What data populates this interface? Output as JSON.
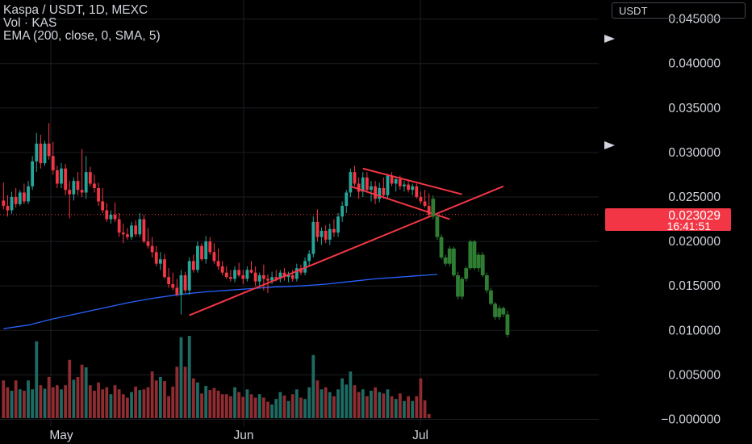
{
  "header": {
    "symbol_line": "Kaspa / USDT, 1D, MEXC",
    "volume_line": "Vol · KAS",
    "ema_line": "EMA (200, close, 0, SMA, 5)"
  },
  "currency_button": "USDT",
  "price_badge": {
    "price": "0.023029",
    "countdown": "16:41:51",
    "color": "#f23645"
  },
  "colors": {
    "up": "#26a69a",
    "down": "#f23645",
    "projection": "#2e7d32",
    "ema": "#2962ff",
    "trendline": "#f23645",
    "grid": "#1c1e24",
    "axis_text": "#d1d4dc"
  },
  "chart_data": {
    "type": "candlestick",
    "x_axis": {
      "tick_labels": [
        "May",
        "Jun",
        "Jul"
      ]
    },
    "y_axis": {
      "position": "right",
      "range": [
        -0.0008,
        0.047
      ],
      "tick_values": [
        0.045,
        0.04,
        0.035,
        0.03,
        0.025,
        0.02,
        0.015,
        0.01,
        0.005,
        0.0
      ],
      "tick_labels": [
        "0.045000",
        "0.040000",
        "0.035000",
        "0.030000",
        "0.025000",
        "0.020000",
        "0.015000",
        "0.010000",
        "0.005000",
        "−0.000000"
      ]
    },
    "grid": true,
    "current_price": 0.023029,
    "candles": [
      [
        0.0246,
        0.0266,
        0.0236,
        0.024
      ],
      [
        0.024,
        0.0252,
        0.0228,
        0.0235
      ],
      [
        0.0235,
        0.0256,
        0.0231,
        0.025
      ],
      [
        0.025,
        0.026,
        0.0238,
        0.0242
      ],
      [
        0.0242,
        0.0258,
        0.024,
        0.0255
      ],
      [
        0.0255,
        0.0265,
        0.0242,
        0.0245
      ],
      [
        0.0245,
        0.0268,
        0.0242,
        0.0262
      ],
      [
        0.0262,
        0.0296,
        0.0258,
        0.029
      ],
      [
        0.029,
        0.0322,
        0.0278,
        0.031
      ],
      [
        0.031,
        0.032,
        0.0282,
        0.0288
      ],
      [
        0.0288,
        0.0313,
        0.0285,
        0.031
      ],
      [
        0.031,
        0.0333,
        0.0292,
        0.0296
      ],
      [
        0.0296,
        0.0312,
        0.0275,
        0.028
      ],
      [
        0.028,
        0.0285,
        0.026,
        0.0265
      ],
      [
        0.0265,
        0.0288,
        0.026,
        0.0282
      ],
      [
        0.0282,
        0.0287,
        0.0252,
        0.0258
      ],
      [
        0.0258,
        0.0268,
        0.0226,
        0.0253
      ],
      [
        0.0253,
        0.0272,
        0.0246,
        0.0268
      ],
      [
        0.0268,
        0.0278,
        0.0252,
        0.0258
      ],
      [
        0.0258,
        0.0304,
        0.025,
        0.0255
      ],
      [
        0.0255,
        0.0296,
        0.0248,
        0.0278
      ],
      [
        0.0278,
        0.0284,
        0.0262,
        0.0265
      ],
      [
        0.0265,
        0.0275,
        0.0255,
        0.026
      ],
      [
        0.026,
        0.0266,
        0.024,
        0.0245
      ],
      [
        0.0245,
        0.026,
        0.0232,
        0.0235
      ],
      [
        0.0235,
        0.0243,
        0.0222,
        0.0225
      ],
      [
        0.0225,
        0.0235,
        0.022,
        0.023
      ],
      [
        0.023,
        0.0244,
        0.0222,
        0.0225
      ],
      [
        0.0225,
        0.0232,
        0.0205,
        0.021
      ],
      [
        0.021,
        0.022,
        0.0198,
        0.0208
      ],
      [
        0.0208,
        0.0215,
        0.0202,
        0.0205
      ],
      [
        0.0205,
        0.0222,
        0.0202,
        0.0218
      ],
      [
        0.0218,
        0.0224,
        0.0205,
        0.0208
      ],
      [
        0.0208,
        0.0232,
        0.0205,
        0.0225
      ],
      [
        0.0225,
        0.023,
        0.0198,
        0.02
      ],
      [
        0.02,
        0.0215,
        0.0192,
        0.0195
      ],
      [
        0.0195,
        0.0205,
        0.0182,
        0.0188
      ],
      [
        0.0188,
        0.0195,
        0.0172,
        0.0175
      ],
      [
        0.0175,
        0.0188,
        0.0168,
        0.018
      ],
      [
        0.018,
        0.0186,
        0.0158,
        0.016
      ],
      [
        0.016,
        0.017,
        0.0148,
        0.0152
      ],
      [
        0.0152,
        0.0165,
        0.0145,
        0.0148
      ],
      [
        0.0148,
        0.0158,
        0.0138,
        0.014
      ],
      [
        0.014,
        0.0168,
        0.0118,
        0.0162
      ],
      [
        0.0162,
        0.0166,
        0.0142,
        0.0145
      ],
      [
        0.0145,
        0.0182,
        0.014,
        0.0178
      ],
      [
        0.0178,
        0.0185,
        0.0165,
        0.0168
      ],
      [
        0.0168,
        0.02,
        0.0165,
        0.0195
      ],
      [
        0.0195,
        0.0198,
        0.0178,
        0.018
      ],
      [
        0.018,
        0.0206,
        0.0175,
        0.02
      ],
      [
        0.02,
        0.0205,
        0.0185,
        0.0188
      ],
      [
        0.0188,
        0.0198,
        0.0175,
        0.0178
      ],
      [
        0.0178,
        0.0192,
        0.0168,
        0.0172
      ],
      [
        0.0172,
        0.0178,
        0.0162,
        0.0165
      ],
      [
        0.0165,
        0.0172,
        0.0158,
        0.016
      ],
      [
        0.016,
        0.0168,
        0.0155,
        0.0158
      ],
      [
        0.0158,
        0.0172,
        0.0154,
        0.0168
      ],
      [
        0.0168,
        0.0176,
        0.016,
        0.0162
      ],
      [
        0.0162,
        0.0168,
        0.0152,
        0.0158
      ],
      [
        0.0158,
        0.0172,
        0.0155,
        0.0168
      ],
      [
        0.0168,
        0.0178,
        0.0164,
        0.0165
      ],
      [
        0.0165,
        0.0172,
        0.015,
        0.0155
      ],
      [
        0.0155,
        0.0165,
        0.015,
        0.0162
      ],
      [
        0.0162,
        0.0174,
        0.0145,
        0.0158
      ],
      [
        0.0158,
        0.0163,
        0.0142,
        0.0156
      ],
      [
        0.0156,
        0.0166,
        0.0152,
        0.016
      ],
      [
        0.016,
        0.0168,
        0.0155,
        0.0158
      ],
      [
        0.0158,
        0.0168,
        0.0154,
        0.0165
      ],
      [
        0.0165,
        0.017,
        0.0156,
        0.016
      ],
      [
        0.016,
        0.0166,
        0.0154,
        0.0162
      ],
      [
        0.0162,
        0.0168,
        0.0155,
        0.0158
      ],
      [
        0.0158,
        0.0175,
        0.0155,
        0.017
      ],
      [
        0.017,
        0.0174,
        0.0162,
        0.0165
      ],
      [
        0.0165,
        0.0182,
        0.0162,
        0.0178
      ],
      [
        0.0178,
        0.019,
        0.0172,
        0.0186
      ],
      [
        0.0186,
        0.0228,
        0.0182,
        0.0222
      ],
      [
        0.0222,
        0.0236,
        0.02,
        0.0205
      ],
      [
        0.0205,
        0.0216,
        0.0196,
        0.0212
      ],
      [
        0.0212,
        0.0218,
        0.0198,
        0.0202
      ],
      [
        0.0202,
        0.022,
        0.0196,
        0.0214
      ],
      [
        0.0214,
        0.0225,
        0.0205,
        0.021
      ],
      [
        0.021,
        0.0232,
        0.0205,
        0.0228
      ],
      [
        0.0228,
        0.0245,
        0.0222,
        0.024
      ],
      [
        0.024,
        0.0258,
        0.0232,
        0.0255
      ],
      [
        0.0255,
        0.0282,
        0.025,
        0.0278
      ],
      [
        0.0278,
        0.0285,
        0.0262,
        0.0265
      ],
      [
        0.0265,
        0.0272,
        0.0248,
        0.0256
      ],
      [
        0.0256,
        0.0278,
        0.025,
        0.0272
      ],
      [
        0.0272,
        0.0278,
        0.0255,
        0.0258
      ],
      [
        0.0258,
        0.0268,
        0.0245,
        0.0262
      ],
      [
        0.0262,
        0.0268,
        0.0242,
        0.0248
      ],
      [
        0.0248,
        0.0266,
        0.0244,
        0.026
      ],
      [
        0.026,
        0.0272,
        0.0248,
        0.0252
      ],
      [
        0.0252,
        0.0276,
        0.0248,
        0.0274
      ],
      [
        0.0274,
        0.0278,
        0.0262,
        0.0265
      ],
      [
        0.0265,
        0.0272,
        0.0256,
        0.027
      ],
      [
        0.027,
        0.0274,
        0.0258,
        0.0262
      ],
      [
        0.0262,
        0.0268,
        0.0256,
        0.0264
      ],
      [
        0.0264,
        0.0268,
        0.0255,
        0.0258
      ],
      [
        0.0258,
        0.0265,
        0.0252,
        0.0262
      ],
      [
        0.0262,
        0.0265,
        0.0248,
        0.025
      ],
      [
        0.025,
        0.0256,
        0.0242,
        0.0245
      ],
      [
        0.0245,
        0.0258,
        0.0238,
        0.024
      ],
      [
        0.024,
        0.0254,
        0.0228,
        0.023
      ]
    ],
    "volumes": [
      [
        0.0055,
        false
      ],
      [
        0.0045,
        false
      ],
      [
        0.004,
        true
      ],
      [
        0.0055,
        false
      ],
      [
        0.0042,
        true
      ],
      [
        0.004,
        false
      ],
      [
        0.0055,
        true
      ],
      [
        0.0042,
        true
      ],
      [
        0.0112,
        true
      ],
      [
        0.0048,
        false
      ],
      [
        0.0043,
        true
      ],
      [
        0.006,
        false
      ],
      [
        0.0045,
        false
      ],
      [
        0.0048,
        false
      ],
      [
        0.0042,
        true
      ],
      [
        0.0048,
        false
      ],
      [
        0.0085,
        false
      ],
      [
        0.0056,
        true
      ],
      [
        0.006,
        false
      ],
      [
        0.0078,
        false
      ],
      [
        0.0074,
        true
      ],
      [
        0.0048,
        false
      ],
      [
        0.004,
        false
      ],
      [
        0.0052,
        false
      ],
      [
        0.0042,
        false
      ],
      [
        0.0045,
        false
      ],
      [
        0.0035,
        true
      ],
      [
        0.0048,
        false
      ],
      [
        0.0042,
        false
      ],
      [
        0.0035,
        false
      ],
      [
        0.003,
        false
      ],
      [
        0.0038,
        true
      ],
      [
        0.0046,
        false
      ],
      [
        0.0041,
        true
      ],
      [
        0.0042,
        false
      ],
      [
        0.0045,
        false
      ],
      [
        0.0068,
        false
      ],
      [
        0.0055,
        false
      ],
      [
        0.006,
        true
      ],
      [
        0.0054,
        false
      ],
      [
        0.0032,
        false
      ],
      [
        0.0046,
        false
      ],
      [
        0.0075,
        false
      ],
      [
        0.0118,
        true
      ],
      [
        0.0075,
        false
      ],
      [
        0.012,
        true
      ],
      [
        0.0058,
        false
      ],
      [
        0.0052,
        true
      ],
      [
        0.0036,
        false
      ],
      [
        0.0047,
        true
      ],
      [
        0.0041,
        false
      ],
      [
        0.0044,
        false
      ],
      [
        0.004,
        false
      ],
      [
        0.0035,
        false
      ],
      [
        0.0035,
        false
      ],
      [
        0.0032,
        false
      ],
      [
        0.0045,
        true
      ],
      [
        0.0038,
        false
      ],
      [
        0.0031,
        false
      ],
      [
        0.0042,
        true
      ],
      [
        0.0035,
        false
      ],
      [
        0.003,
        false
      ],
      [
        0.0035,
        true
      ],
      [
        0.003,
        false
      ],
      [
        0.0024,
        false
      ],
      [
        0.002,
        true
      ],
      [
        0.0028,
        true
      ],
      [
        0.0038,
        true
      ],
      [
        0.0033,
        false
      ],
      [
        0.0025,
        true
      ],
      [
        0.0035,
        false
      ],
      [
        0.0042,
        true
      ],
      [
        0.003,
        false
      ],
      [
        0.0028,
        true
      ],
      [
        0.0045,
        true
      ],
      [
        0.0092,
        true
      ],
      [
        0.0055,
        false
      ],
      [
        0.0042,
        true
      ],
      [
        0.0045,
        false
      ],
      [
        0.0038,
        true
      ],
      [
        0.0032,
        false
      ],
      [
        0.0042,
        true
      ],
      [
        0.0058,
        true
      ],
      [
        0.0049,
        true
      ],
      [
        0.0068,
        true
      ],
      [
        0.0048,
        false
      ],
      [
        0.0038,
        false
      ],
      [
        0.0042,
        true
      ],
      [
        0.0032,
        false
      ],
      [
        0.004,
        true
      ],
      [
        0.0045,
        false
      ],
      [
        0.0038,
        true
      ],
      [
        0.0036,
        false
      ],
      [
        0.0042,
        true
      ],
      [
        0.0032,
        false
      ],
      [
        0.0028,
        true
      ],
      [
        0.0036,
        false
      ],
      [
        0.0025,
        true
      ],
      [
        0.0032,
        false
      ],
      [
        0.0025,
        true
      ],
      [
        0.0032,
        false
      ],
      [
        0.0058,
        false
      ],
      [
        0.0026,
        false
      ],
      [
        0.0006,
        false
      ]
    ],
    "ema": [
      [
        0,
        0.0102
      ],
      [
        6,
        0.0106
      ],
      [
        12,
        0.0113
      ],
      [
        18,
        0.0119
      ],
      [
        24,
        0.0125
      ],
      [
        30,
        0.0131
      ],
      [
        36,
        0.0136
      ],
      [
        42,
        0.014
      ],
      [
        48,
        0.0143
      ],
      [
        54,
        0.0145
      ],
      [
        60,
        0.0147
      ],
      [
        66,
        0.0149
      ],
      [
        72,
        0.015
      ],
      [
        78,
        0.0152
      ],
      [
        84,
        0.0155
      ],
      [
        90,
        0.0158
      ],
      [
        96,
        0.016
      ],
      [
        102,
        0.0162
      ],
      [
        105,
        0.0163
      ]
    ],
    "projection_candles": [
      [
        0.0248,
        0.0252,
        0.0225,
        0.0228
      ],
      [
        0.0228,
        0.023,
        0.0202,
        0.0205
      ],
      [
        0.0205,
        0.0208,
        0.018,
        0.0182
      ],
      [
        0.0182,
        0.0185,
        0.0172,
        0.0175
      ],
      [
        0.0175,
        0.0195,
        0.0172,
        0.0192
      ],
      [
        0.0192,
        0.0194,
        0.016,
        0.0162
      ],
      [
        0.0162,
        0.0166,
        0.0135,
        0.0138
      ],
      [
        0.0138,
        0.016,
        0.0135,
        0.0158
      ],
      [
        0.0158,
        0.0172,
        0.0155,
        0.017
      ],
      [
        0.017,
        0.0202,
        0.0168,
        0.02
      ],
      [
        0.02,
        0.0202,
        0.0168,
        0.017
      ],
      [
        0.017,
        0.0188,
        0.0166,
        0.0185
      ],
      [
        0.0185,
        0.0188,
        0.016,
        0.0162
      ],
      [
        0.0162,
        0.0165,
        0.0142,
        0.0145
      ],
      [
        0.0145,
        0.0148,
        0.0128,
        0.013
      ],
      [
        0.013,
        0.0132,
        0.0112,
        0.0115
      ],
      [
        0.0115,
        0.0128,
        0.0112,
        0.0125
      ],
      [
        0.0125,
        0.0127,
        0.0115,
        0.0118
      ],
      [
        0.0118,
        0.0122,
        0.0092,
        0.0095
      ]
    ],
    "annotations": {
      "trendlines": [
        [
          [
            45,
            0.0117
          ],
          [
            121,
            0.0262
          ]
        ],
        [
          [
            87,
            0.0282
          ],
          [
            111,
            0.0253
          ]
        ],
        [
          [
            84,
            0.0262
          ],
          [
            108,
            0.0225
          ]
        ]
      ]
    }
  }
}
